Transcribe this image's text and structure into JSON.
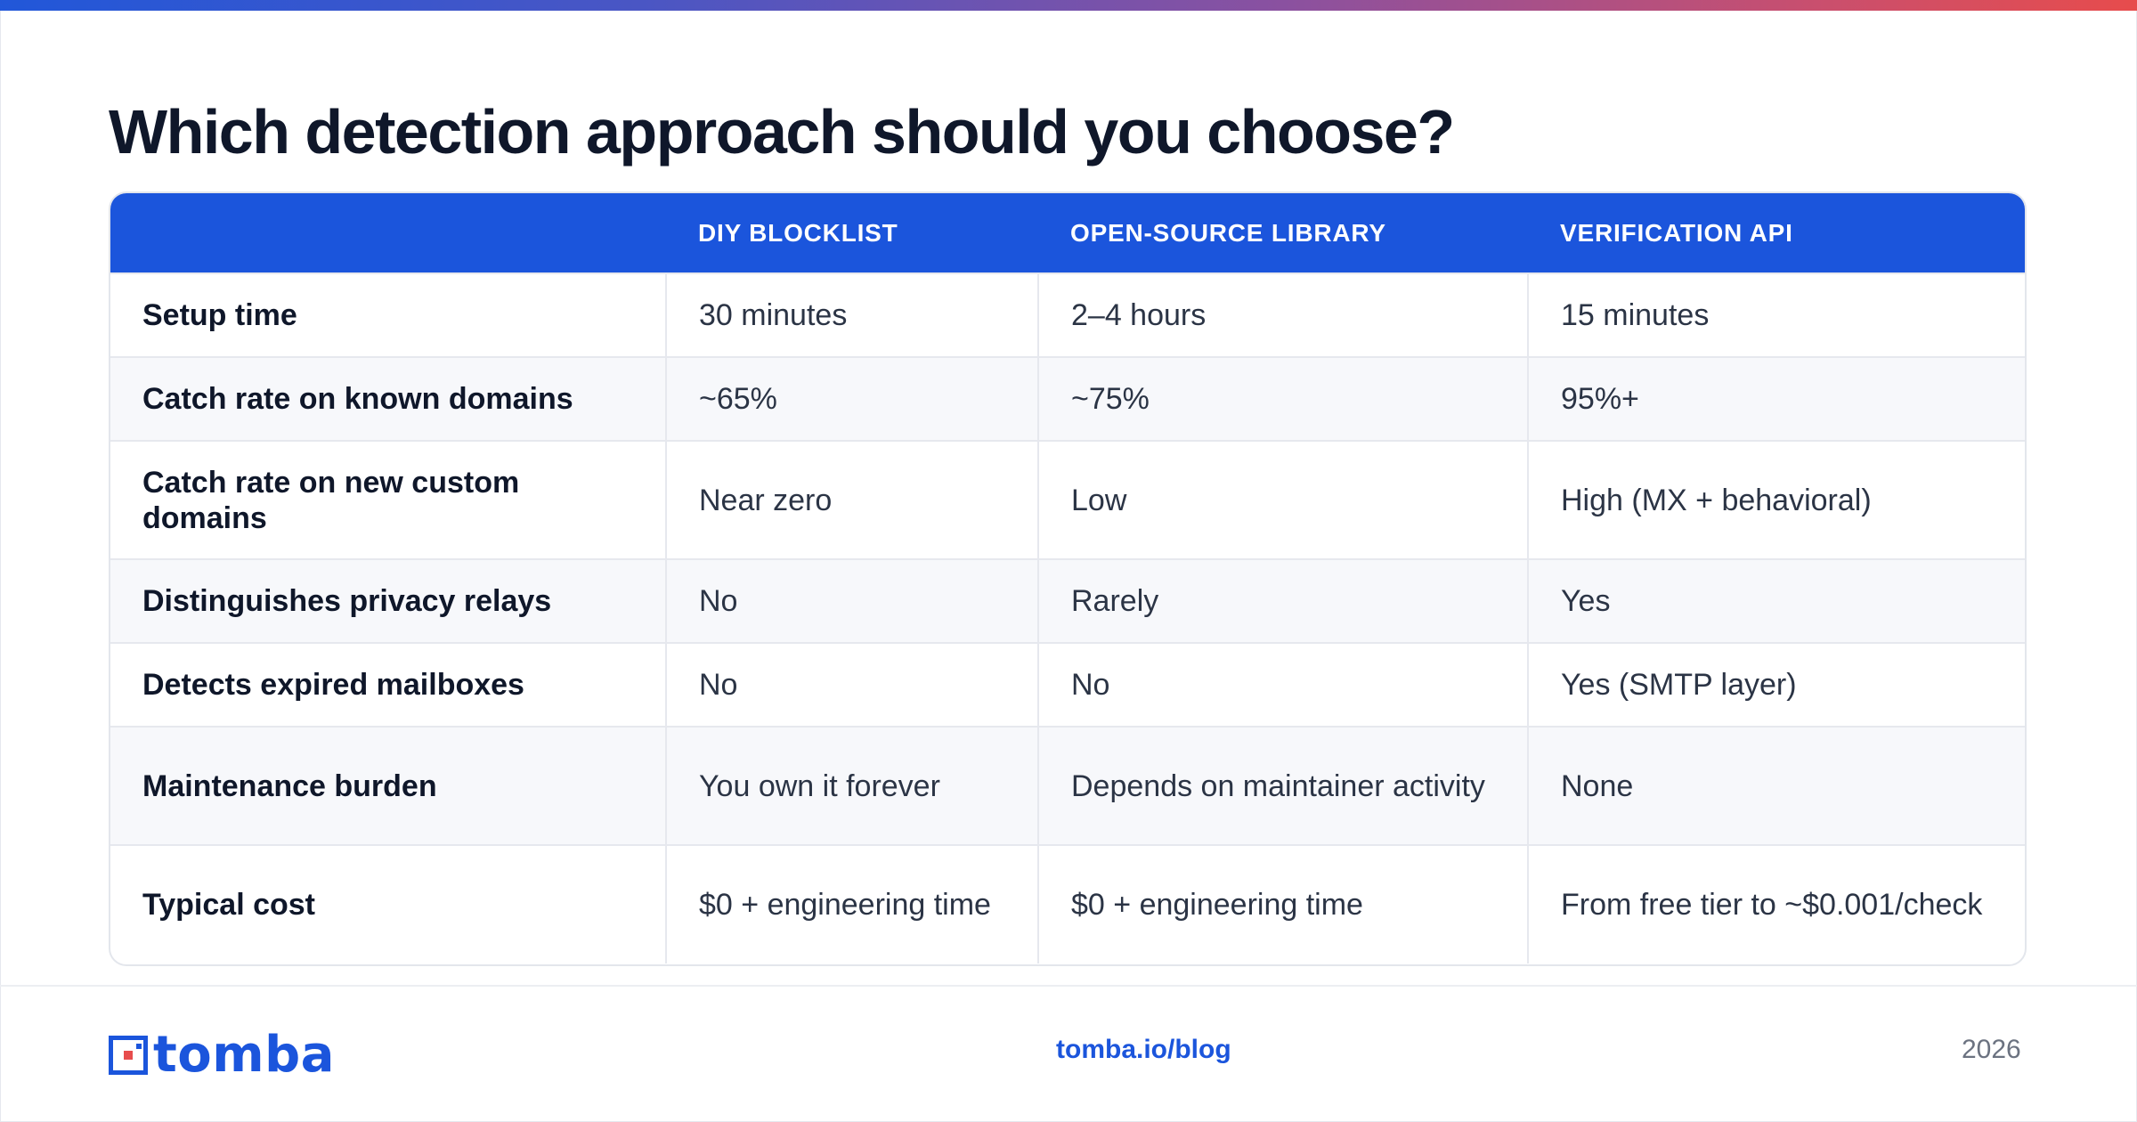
{
  "title": "Which detection approach should you choose?",
  "accent_color": "#1b55dc",
  "table": {
    "headers": [
      "",
      "DIY BLOCKLIST",
      "OPEN-SOURCE LIBRARY",
      "VERIFICATION API"
    ],
    "rows": [
      [
        "Setup time",
        "30 minutes",
        "2–4 hours",
        "15 minutes"
      ],
      [
        "Catch rate on known domains",
        "~65%",
        "~75%",
        "95%+"
      ],
      [
        "Catch rate on new custom domains",
        "Near zero",
        "Low",
        "High (MX + behavioral)"
      ],
      [
        "Distinguishes privacy relays",
        "No",
        "Rarely",
        "Yes"
      ],
      [
        "Detects expired mailboxes",
        "No",
        "No",
        "Yes (SMTP layer)"
      ],
      [
        "Maintenance burden",
        "You own it forever",
        "Depends on maintainer activity",
        "None"
      ],
      [
        "Typical cost",
        "$0 + engineering time",
        "$0 + engineering time",
        "From free tier to ~$0.001/check"
      ]
    ]
  },
  "footer": {
    "logo_text": "tomba",
    "logo_icon": "tomba-logo-icon",
    "link": "tomba.io/blog",
    "year": "2026"
  }
}
